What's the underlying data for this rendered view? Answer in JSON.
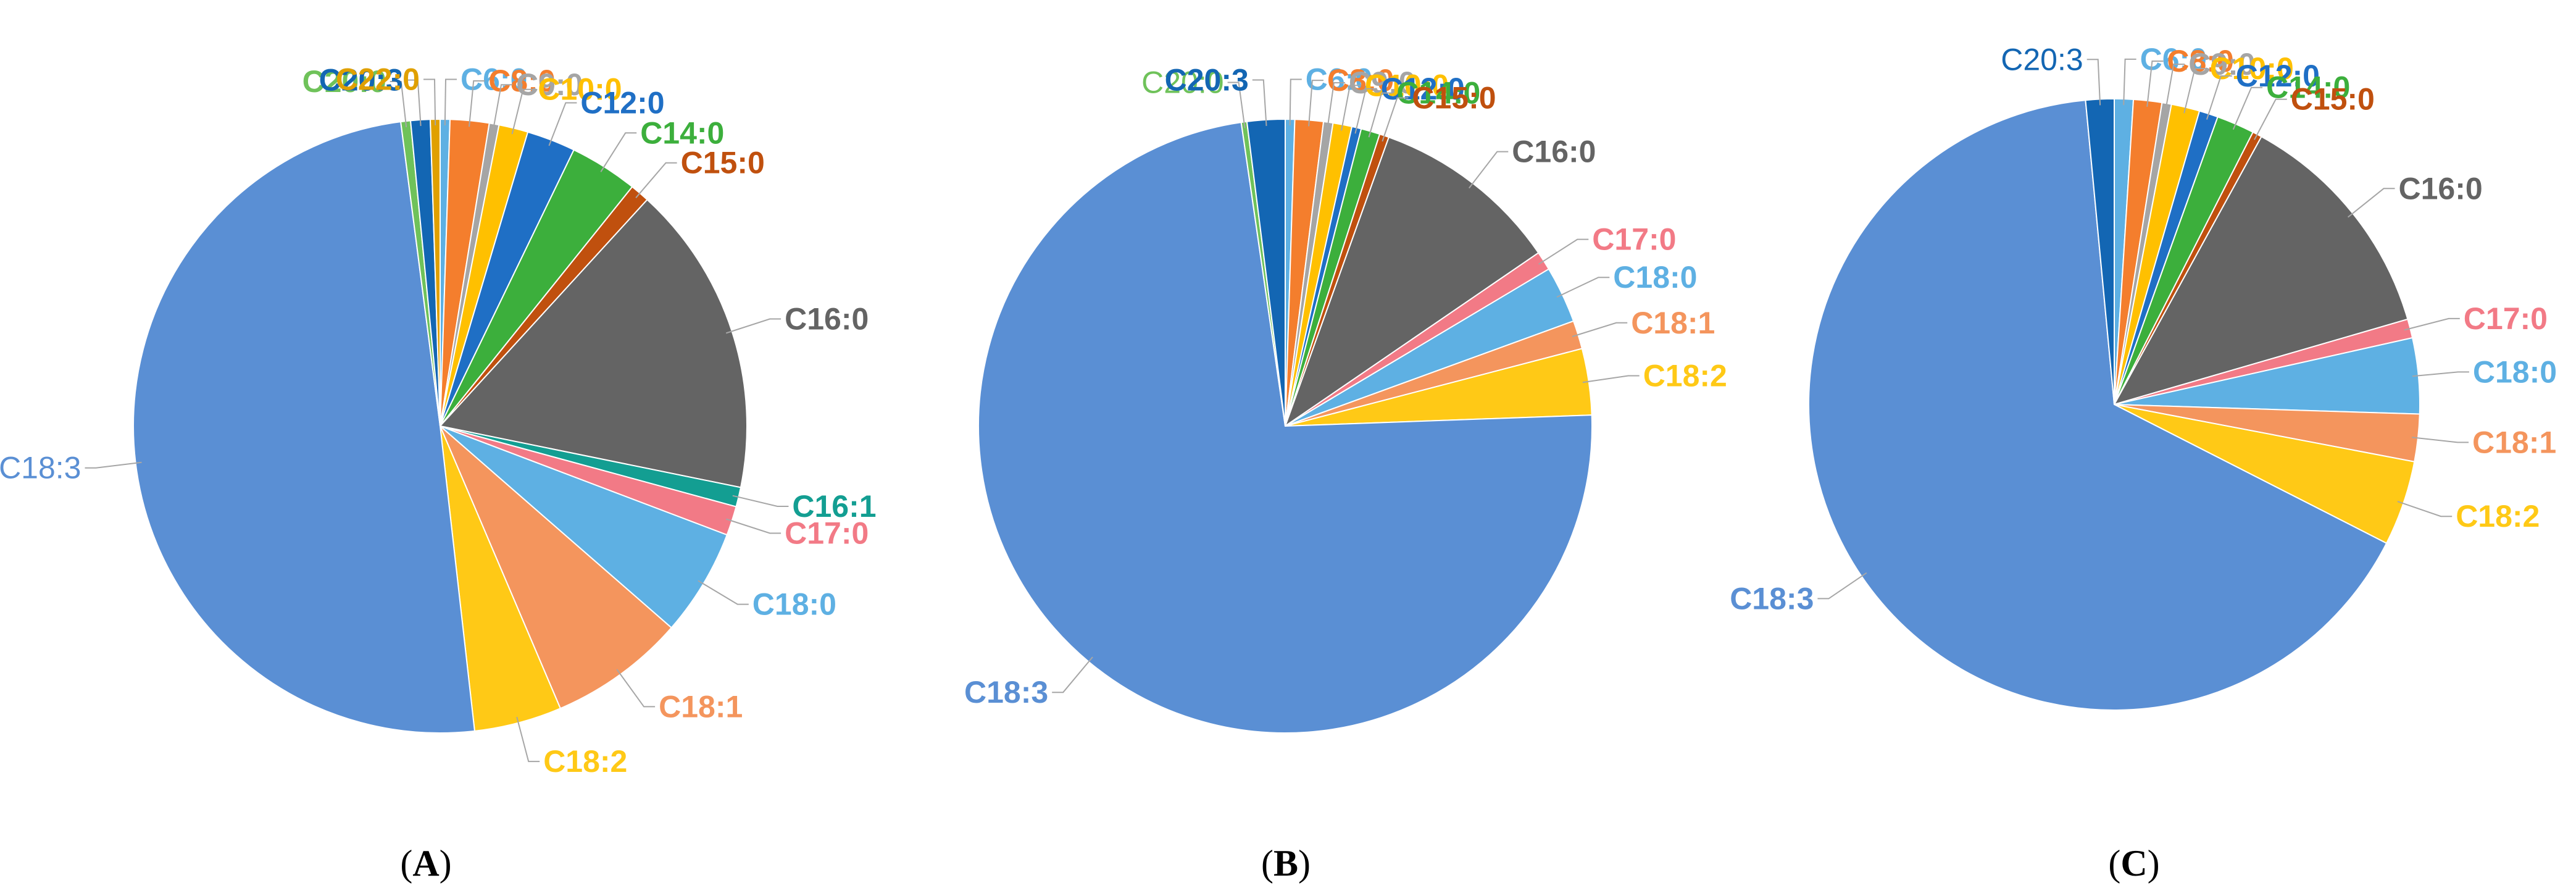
{
  "chart_data": [
    {
      "type": "pie",
      "panel_label": "A",
      "categories": [
        "C6:0",
        "C8:0",
        "C9:0",
        "C10:0",
        "C12:0",
        "C14:0",
        "C15:0",
        "C16:0",
        "C16:1",
        "C17:0",
        "C18:0",
        "C18:1",
        "C18:2",
        "C18:3",
        "C20:0",
        "C20:3",
        "C22:0"
      ],
      "values": [
        0.5,
        2.0,
        0.5,
        1.5,
        2.5,
        3.5,
        1.0,
        16.0,
        1.0,
        1.5,
        5.5,
        7.0,
        4.5,
        48.5,
        0.5,
        1.0,
        0.5
      ],
      "colors": [
        "#5EB0E3",
        "#F47E2D",
        "#A5A5A5",
        "#FFC000",
        "#1F6FC5",
        "#3CAF3C",
        "#C0500E",
        "#646464",
        "#139E92",
        "#F27A86",
        "#5EB0E3",
        "#F4955D",
        "#FFC916",
        "#5A8FD4",
        "#6FC25A",
        "#1366B3",
        "#E0A000"
      ],
      "title": "",
      "legend": "none",
      "labels": "outside-with-leaders"
    },
    {
      "type": "pie",
      "panel_label": "B",
      "categories": [
        "C6:0",
        "C8:0",
        "C9:0",
        "C10:0",
        "C12:0",
        "C14:0",
        "C15:0",
        "C16:0",
        "C17:0",
        "C18:0",
        "C18:1",
        "C18:2",
        "C18:3",
        "C20:0",
        "C20:3"
      ],
      "values": [
        0.5,
        1.5,
        0.5,
        1.0,
        0.5,
        1.0,
        0.5,
        10.0,
        1.0,
        3.0,
        1.5,
        3.5,
        73.5,
        0.3,
        2.0
      ],
      "colors": [
        "#5EB0E3",
        "#F47E2D",
        "#A5A5A5",
        "#FFC000",
        "#1F6FC5",
        "#3CAF3C",
        "#C0500E",
        "#646464",
        "#F27A86",
        "#5EB0E3",
        "#F4955D",
        "#FFC916",
        "#5A8FD4",
        "#6FC25A",
        "#1366B3"
      ],
      "title": "",
      "legend": "none",
      "labels": "outside-with-leaders"
    },
    {
      "type": "pie",
      "panel_label": "C",
      "categories": [
        "C6:0",
        "C8:0",
        "C9:0",
        "C10:0",
        "C12:0",
        "C14:0",
        "C15:0",
        "C16:0",
        "C17:0",
        "C18:0",
        "C18:1",
        "C18:2",
        "C18:3",
        "C20:3"
      ],
      "values": [
        1.0,
        1.5,
        0.5,
        1.5,
        1.0,
        2.0,
        0.5,
        12.5,
        1.0,
        4.0,
        2.5,
        4.5,
        66.0,
        1.5
      ],
      "colors": [
        "#5EB0E3",
        "#F47E2D",
        "#A5A5A5",
        "#FFC000",
        "#1F6FC5",
        "#3CAF3C",
        "#C0500E",
        "#646464",
        "#F27A86",
        "#5EB0E3",
        "#F4955D",
        "#FFC916",
        "#5A8FD4",
        "#1366B3"
      ],
      "title": "",
      "legend": "none",
      "labels": "outside-with-leaders"
    }
  ]
}
